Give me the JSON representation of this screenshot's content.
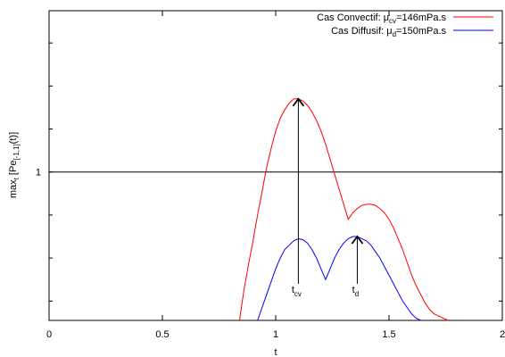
{
  "chart_data": {
    "type": "line",
    "xlabel": "t",
    "ylabel": "max",
    "ylabel_sub": "t",
    "ylabel_rest": " [Pe",
    "ylabel_sub2": "[-1,1]",
    "ylabel_end": "(t)]",
    "xlim": [
      0,
      2
    ],
    "xticks": [
      {
        "value": 0,
        "label": "0"
      },
      {
        "value": 0.5,
        "label": "0.5"
      },
      {
        "value": 1,
        "label": "1"
      },
      {
        "value": 1.5,
        "label": "1.5"
      },
      {
        "value": 2,
        "label": "2"
      }
    ],
    "ylim": [
      0.31,
      1.75
    ],
    "ymark": {
      "value": 1,
      "label": "1"
    },
    "hline": 1,
    "grid": false,
    "legend_position": "top-right",
    "series": [
      {
        "name_prefix": "Cas Convectif: μ",
        "name_sub": "cv",
        "name_suffix": "=146mPa.s",
        "color": "#ff0000",
        "points": [
          [
            0.84,
            0.31
          ],
          [
            0.86,
            0.45
          ],
          [
            0.88,
            0.57
          ],
          [
            0.9,
            0.68
          ],
          [
            0.92,
            0.8
          ],
          [
            0.94,
            0.91
          ],
          [
            0.96,
            1.02
          ],
          [
            0.98,
            1.11
          ],
          [
            1.0,
            1.19
          ],
          [
            1.02,
            1.25
          ],
          [
            1.04,
            1.29
          ],
          [
            1.06,
            1.32
          ],
          [
            1.08,
            1.34
          ],
          [
            1.1,
            1.34
          ],
          [
            1.12,
            1.33
          ],
          [
            1.14,
            1.31
          ],
          [
            1.16,
            1.28
          ],
          [
            1.18,
            1.24
          ],
          [
            1.2,
            1.19
          ],
          [
            1.22,
            1.13
          ],
          [
            1.24,
            1.06
          ],
          [
            1.26,
            0.99
          ],
          [
            1.28,
            0.92
          ],
          [
            1.3,
            0.85
          ],
          [
            1.32,
            0.78
          ],
          [
            1.34,
            0.81
          ],
          [
            1.36,
            0.83
          ],
          [
            1.38,
            0.845
          ],
          [
            1.4,
            0.85
          ],
          [
            1.42,
            0.85
          ],
          [
            1.44,
            0.845
          ],
          [
            1.46,
            0.83
          ],
          [
            1.48,
            0.81
          ],
          [
            1.5,
            0.78
          ],
          [
            1.52,
            0.74
          ],
          [
            1.54,
            0.69
          ],
          [
            1.56,
            0.64
          ],
          [
            1.58,
            0.58
          ],
          [
            1.6,
            0.52
          ],
          [
            1.62,
            0.47
          ],
          [
            1.64,
            0.43
          ],
          [
            1.66,
            0.39
          ],
          [
            1.68,
            0.36
          ],
          [
            1.7,
            0.34
          ],
          [
            1.72,
            0.33
          ],
          [
            1.74,
            0.32
          ],
          [
            1.76,
            0.31
          ]
        ]
      },
      {
        "name_prefix": "Cas Diffusif: μ",
        "name_sub": "d",
        "name_suffix": "=150mPa.s",
        "color": "#0000ff",
        "points": [
          [
            0.92,
            0.31
          ],
          [
            0.94,
            0.37
          ],
          [
            0.96,
            0.43
          ],
          [
            0.98,
            0.49
          ],
          [
            1.0,
            0.55
          ],
          [
            1.02,
            0.6
          ],
          [
            1.04,
            0.64
          ],
          [
            1.06,
            0.66
          ],
          [
            1.08,
            0.68
          ],
          [
            1.1,
            0.69
          ],
          [
            1.12,
            0.685
          ],
          [
            1.14,
            0.67
          ],
          [
            1.16,
            0.64
          ],
          [
            1.18,
            0.6
          ],
          [
            1.2,
            0.55
          ],
          [
            1.22,
            0.5
          ],
          [
            1.24,
            0.55
          ],
          [
            1.26,
            0.6
          ],
          [
            1.28,
            0.64
          ],
          [
            1.3,
            0.67
          ],
          [
            1.32,
            0.69
          ],
          [
            1.34,
            0.7
          ],
          [
            1.36,
            0.7
          ],
          [
            1.38,
            0.69
          ],
          [
            1.4,
            0.68
          ],
          [
            1.42,
            0.66
          ],
          [
            1.44,
            0.63
          ],
          [
            1.46,
            0.6
          ],
          [
            1.48,
            0.56
          ],
          [
            1.5,
            0.52
          ],
          [
            1.52,
            0.48
          ],
          [
            1.54,
            0.44
          ],
          [
            1.56,
            0.4
          ],
          [
            1.58,
            0.37
          ],
          [
            1.6,
            0.34
          ],
          [
            1.62,
            0.32
          ],
          [
            1.64,
            0.31
          ]
        ]
      }
    ],
    "arrows": [
      {
        "x": 1.1,
        "y_from": 0.48,
        "y_to": 1.34,
        "label": "t",
        "label_sub": "cv"
      },
      {
        "x": 1.36,
        "y_from": 0.48,
        "y_to": 0.7,
        "label": "t",
        "label_sub": "d"
      }
    ]
  }
}
